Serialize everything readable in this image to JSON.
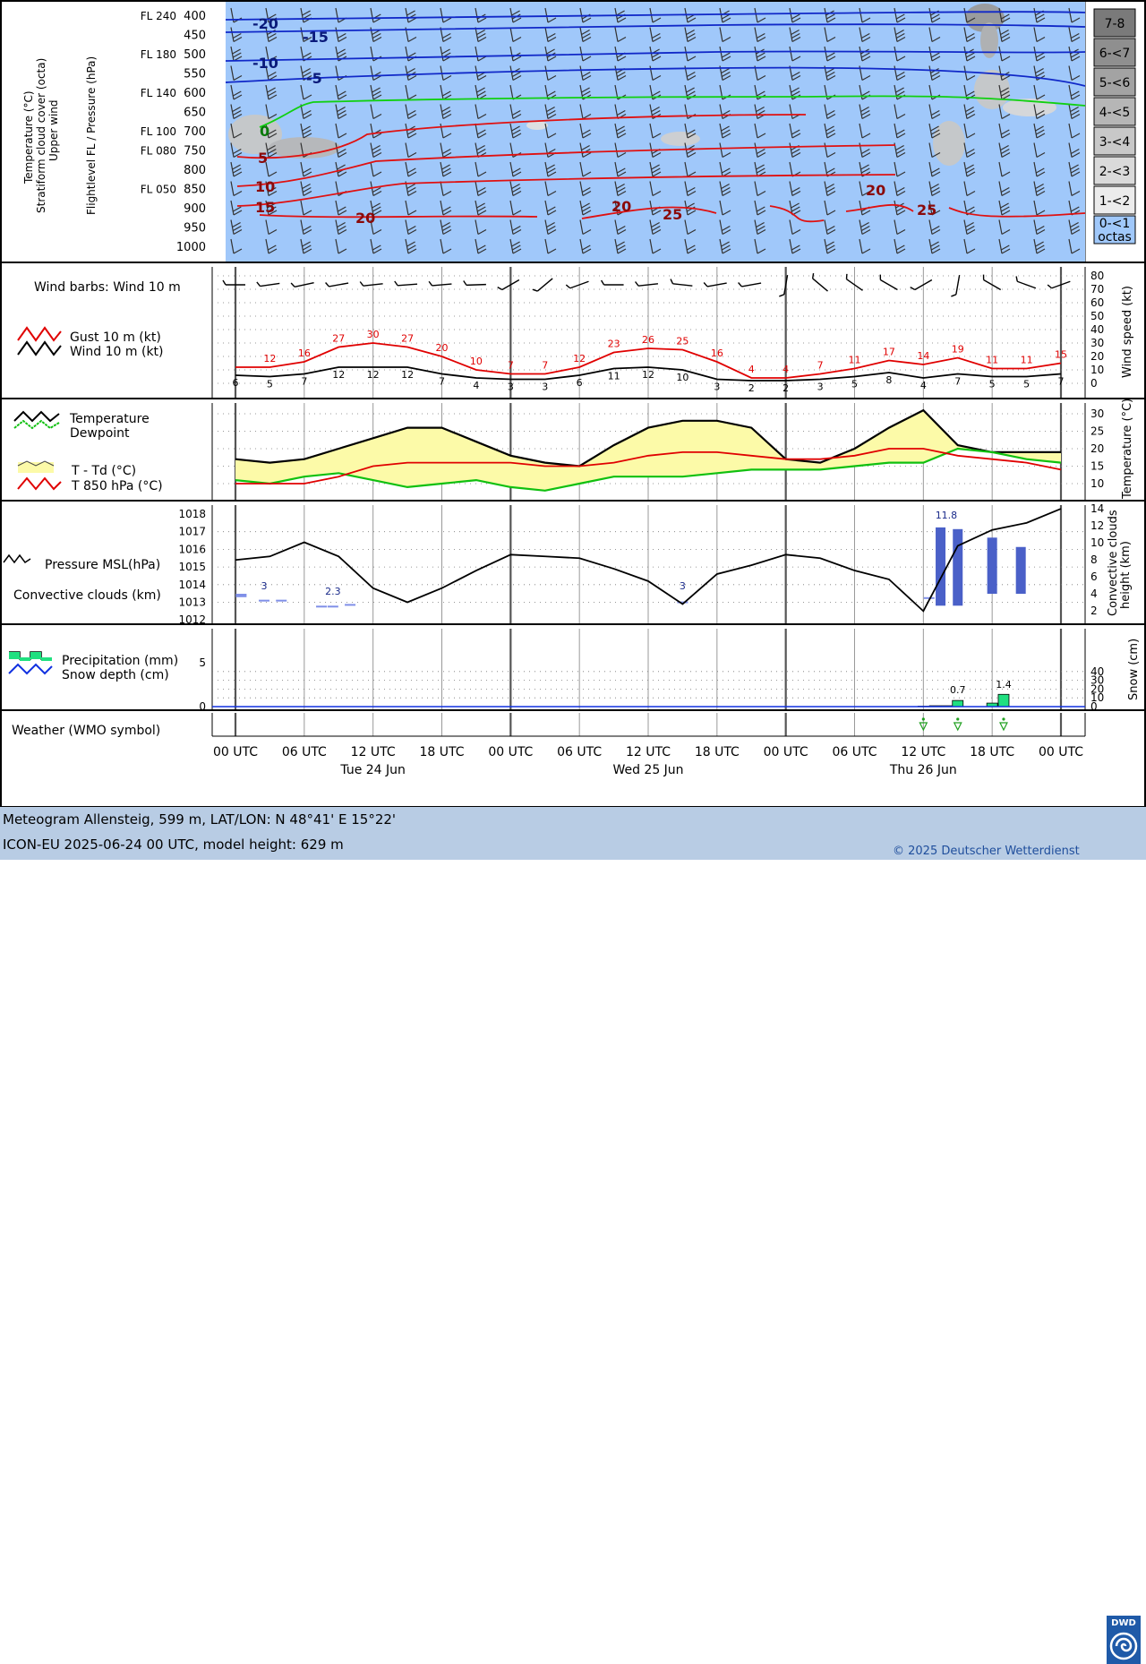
{
  "panels": {
    "upper": {
      "ylabel_left": [
        "Temperature (°C)",
        "Stratiform cloud cover (octa)",
        "Upper wind"
      ],
      "ylabel_axis": "Flightlevel FL / Pressure (hPa)",
      "pressure_levels": [
        "400",
        "450",
        "500",
        "550",
        "600",
        "650",
        "700",
        "750",
        "800",
        "850",
        "900",
        "950",
        "1000"
      ],
      "flight_levels": [
        {
          "fl": "FL 240",
          "p": "400"
        },
        {
          "fl": "FL 180",
          "p": "500"
        },
        {
          "fl": "FL 140",
          "p": "600"
        },
        {
          "fl": "FL 100",
          "p": "700"
        },
        {
          "fl": "FL 080",
          "p": "750"
        },
        {
          "fl": "FL 050",
          "p": "850"
        }
      ],
      "cloud_legend": [
        "7-8",
        "6-<7",
        "5-<6",
        "4-<5",
        "3-<4",
        "2-<3",
        "1-<2",
        "0-<1 octas"
      ],
      "isotherm_labels": [
        "-20",
        "-15",
        "-10",
        "-5",
        "0",
        "5",
        "10",
        "15",
        "20",
        "20",
        "25",
        "20",
        "25"
      ]
    },
    "wind": {
      "barb_label": "Wind barbs: Wind 10 m",
      "legend_gust": "Gust 10 m (kt)",
      "legend_wind": "Wind 10 m (kt)",
      "ylabel": "Wind speed (kt)",
      "yticks": [
        "80",
        "70",
        "60",
        "50",
        "40",
        "30",
        "20",
        "10",
        "0"
      ]
    },
    "temp": {
      "legend_temp": "Temperature",
      "legend_dew": "Dewpoint",
      "legend_spread": "T - Td (°C)",
      "legend_t850": "T 850 hPa (°C)",
      "ylabel": "Temperature (°C)",
      "yticks": [
        "30",
        "25",
        "20",
        "15",
        "10"
      ]
    },
    "pressure": {
      "legend_pressure": "Pressure MSL(hPa)",
      "legend_conv": "Convective clouds (km)",
      "ylabel": [
        "Convective clouds",
        "height (km)"
      ],
      "yticks_left": [
        "1018",
        "1017",
        "1016",
        "1015",
        "1014",
        "1013",
        "1012"
      ],
      "yticks_right": [
        "14",
        "12",
        "10",
        "8",
        "6",
        "4",
        "2"
      ],
      "conv_labels": [
        "3",
        "2.3",
        "3",
        "11.8"
      ]
    },
    "precip": {
      "legend_precip": "Precipitation (mm)",
      "legend_snow": "Snow depth (cm)",
      "ylabel": "Snow (cm)",
      "yticks_left": [
        "5",
        "0"
      ],
      "yticks_right": [
        "40",
        "30",
        "20",
        "10",
        "0"
      ],
      "bar_labels": [
        "0.7",
        "1.4"
      ]
    },
    "weather": {
      "label": "Weather (WMO symbol)"
    }
  },
  "time_axis": {
    "ticks": [
      "00 UTC",
      "06 UTC",
      "12 UTC",
      "18 UTC",
      "00 UTC",
      "06 UTC",
      "12 UTC",
      "18 UTC",
      "00 UTC",
      "06 UTC",
      "12 UTC",
      "18 UTC",
      "00 UTC"
    ],
    "days": [
      "Tue 24 Jun",
      "Wed 25 Jun",
      "Thu 26 Jun"
    ]
  },
  "footer": {
    "line1": "Meteogram Allensteig, 599 m, LAT/LON: N 48°41' E 15°22'",
    "line2": "ICON-EU 2025-06-24 00 UTC, model height: 629 m",
    "copyright": "© 2025 Deutscher Wetterdienst",
    "logo_text": "DWD"
  },
  "colors": {
    "sky": "#a0c8fa",
    "gust": "#e00000",
    "wind": "#000000",
    "dewpoint": "#10c010",
    "spread_fill": "#fcfaa8",
    "conv": "#6a80e0",
    "precip": "#20e080",
    "footer": "#b8cce4"
  },
  "chart_data": [
    {
      "type": "line",
      "title": "Wind",
      "x_hours": [
        0,
        3,
        6,
        9,
        12,
        15,
        18,
        21,
        24,
        27,
        30,
        33,
        36,
        39,
        42,
        45,
        48,
        51,
        54,
        57,
        60,
        63,
        66,
        69,
        72
      ],
      "series": [
        {
          "name": "Gust 10 m (kt)",
          "values": [
            12,
            12,
            16,
            27,
            30,
            27,
            20,
            10,
            7,
            7,
            12,
            23,
            26,
            25,
            16,
            4,
            4,
            7,
            11,
            17,
            14,
            19,
            11,
            11,
            15
          ]
        },
        {
          "name": "Wind 10 m (kt)",
          "values": [
            6,
            5,
            7,
            12,
            12,
            12,
            7,
            4,
            3,
            3,
            6,
            11,
            12,
            10,
            3,
            2,
            2,
            3,
            5,
            8,
            4,
            7,
            5,
            5,
            7
          ]
        }
      ],
      "ylim": [
        0,
        80
      ]
    },
    {
      "type": "line",
      "title": "Temperature",
      "x_hours": [
        0,
        3,
        6,
        9,
        12,
        15,
        18,
        21,
        24,
        27,
        30,
        33,
        36,
        39,
        42,
        45,
        48,
        51,
        54,
        57,
        60,
        63,
        66,
        69,
        72
      ],
      "series": [
        {
          "name": "Temperature",
          "values": [
            17,
            16,
            17,
            20,
            23,
            26,
            26,
            22,
            18,
            16,
            15,
            21,
            26,
            28,
            28,
            26,
            17,
            16,
            20,
            26,
            31,
            21,
            19,
            19,
            19
          ]
        },
        {
          "name": "Dewpoint",
          "values": [
            11,
            10,
            12,
            13,
            11,
            9,
            10,
            11,
            9,
            8,
            10,
            12,
            12,
            12,
            13,
            14,
            14,
            14,
            15,
            16,
            16,
            20,
            19,
            17,
            16
          ]
        },
        {
          "name": "T 850 hPa (°C)",
          "values": [
            10,
            10,
            10,
            12,
            15,
            16,
            16,
            16,
            16,
            15,
            15,
            16,
            18,
            19,
            19,
            18,
            17,
            17,
            18,
            20,
            20,
            18,
            17,
            16,
            14
          ]
        }
      ],
      "ylim": [
        5,
        32
      ]
    },
    {
      "type": "line",
      "title": "Pressure MSL",
      "x_hours": [
        0,
        3,
        6,
        9,
        12,
        15,
        18,
        21,
        24,
        27,
        30,
        33,
        36,
        39,
        42,
        45,
        48,
        51,
        54,
        57,
        60,
        63,
        66,
        69,
        72
      ],
      "series": [
        {
          "name": "Pressure MSL(hPa)",
          "values": [
            1015.4,
            1015.6,
            1016.4,
            1015.6,
            1013.8,
            1013.0,
            1013.8,
            1014.8,
            1015.7,
            1015.6,
            1015.5,
            1014.9,
            1014.2,
            1012.9,
            1014.6,
            1015.1,
            1015.7,
            1015.5,
            1014.8,
            1014.3,
            1012.5,
            1016.2,
            1017.1,
            1017.5,
            1018.3
          ]
        }
      ],
      "ylim": [
        1012,
        1018.5
      ]
    },
    {
      "type": "bar",
      "title": "Convective clouds",
      "x_hours": [
        0.5,
        2.5,
        4.0,
        7.5,
        8.5,
        10.0,
        39.0,
        60.5,
        61.5,
        63.0,
        66.0,
        68.5
      ],
      "bottom_km": [
        3.6,
        3.2,
        3.2,
        2.4,
        2.4,
        2.6,
        3.0,
        3.4,
        2.6,
        2.6,
        4.0,
        4.0
      ],
      "top_km": [
        4.0,
        3.3,
        3.3,
        2.6,
        2.6,
        2.8,
        3.1,
        3.6,
        11.8,
        11.6,
        10.6,
        9.5
      ],
      "ylim": [
        0,
        14
      ]
    },
    {
      "type": "bar",
      "title": "Precipitation",
      "x_hours": [
        60,
        61,
        62,
        63,
        66,
        67
      ],
      "values": [
        0.05,
        0.1,
        0.1,
        0.7,
        0.4,
        1.4
      ],
      "ylim": [
        0,
        8
      ]
    }
  ]
}
